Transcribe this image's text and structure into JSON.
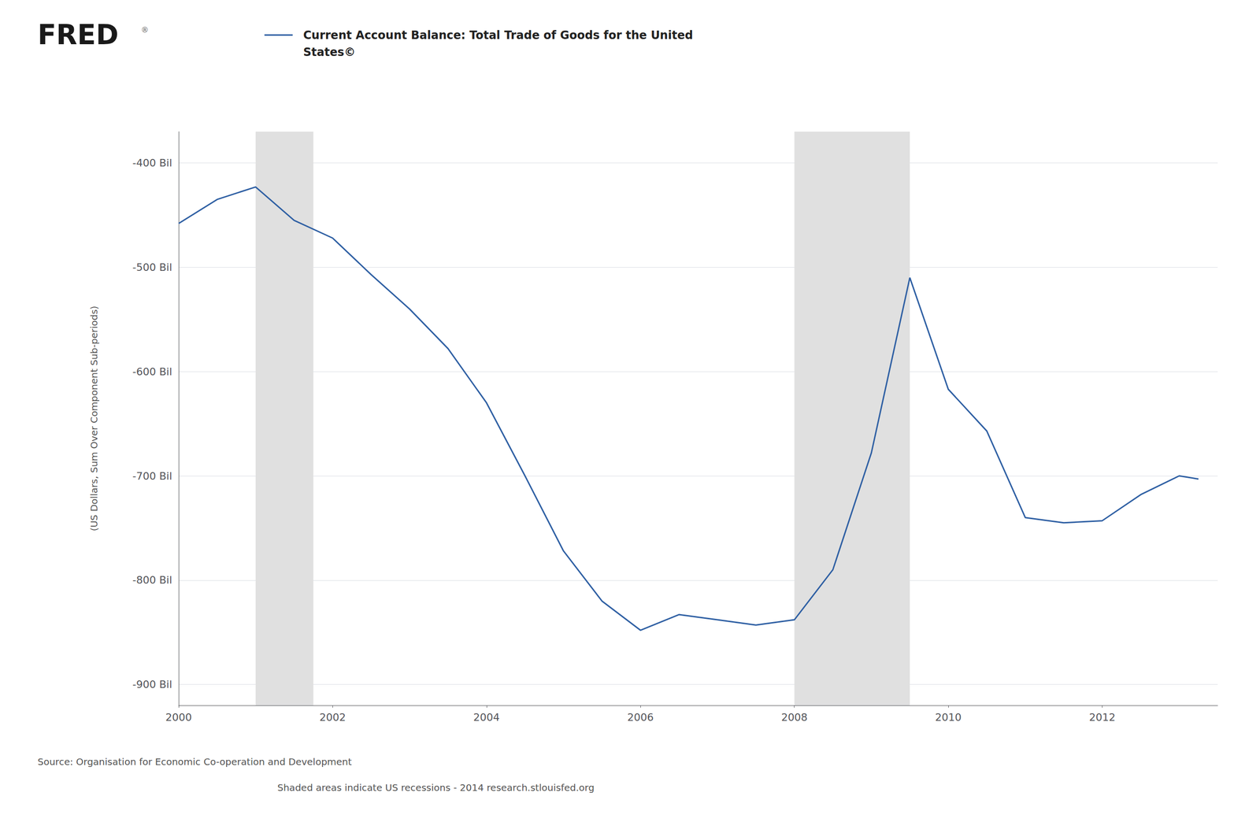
{
  "chart_data": {
    "type": "line",
    "title": "Current Account Balance: Total Trade of Goods for the United\nStates©",
    "ylabel": "(US Dollars, Sum Over Component Sub-periods)",
    "annotations": [
      "FRED",
      "®",
      "Source: Organisation for Economic Co-operation and Development",
      "Shaded areas indicate US recessions - 2014 research.stlouisfed.org"
    ],
    "x": [
      2000.0,
      2000.5,
      2001.0,
      2001.5,
      2002.0,
      2002.5,
      2003.0,
      2003.5,
      2004.0,
      2004.5,
      2005.0,
      2005.5,
      2006.0,
      2006.5,
      2007.0,
      2007.5,
      2008.0,
      2008.5,
      2009.0,
      2009.5,
      2010.0,
      2010.5,
      2011.0,
      2011.5,
      2012.0,
      2012.5,
      2013.0,
      2013.25
    ],
    "values": [
      -458,
      -435,
      -423,
      -455,
      -472,
      -507,
      -540,
      -578,
      -630,
      -700,
      -772,
      -820,
      -848,
      -833,
      -838,
      -843,
      -838,
      -790,
      -678,
      -510,
      -617,
      -657,
      -740,
      -745,
      -743,
      -718,
      -700,
      -703
    ],
    "color": "#2e5fa3",
    "xlim": [
      2000.0,
      2013.5
    ],
    "xticks": [
      2000,
      2002,
      2004,
      2006,
      2008,
      2010,
      2012
    ],
    "ylim": [
      -920,
      -370
    ],
    "yticks": [
      {
        "value": -900,
        "label": "-900 Bil"
      },
      {
        "value": -800,
        "label": "-800 Bil"
      },
      {
        "value": -700,
        "label": "-700 Bil"
      },
      {
        "value": -600,
        "label": "-600 Bil"
      },
      {
        "value": -500,
        "label": "-500 Bil"
      },
      {
        "value": -400,
        "label": "-400 Bil"
      }
    ],
    "grid": true,
    "recessions": {
      "color": "#e0e0e0",
      "ranges": [
        [
          2001.0,
          2001.75
        ],
        [
          2008.0,
          2009.5
        ]
      ]
    }
  }
}
